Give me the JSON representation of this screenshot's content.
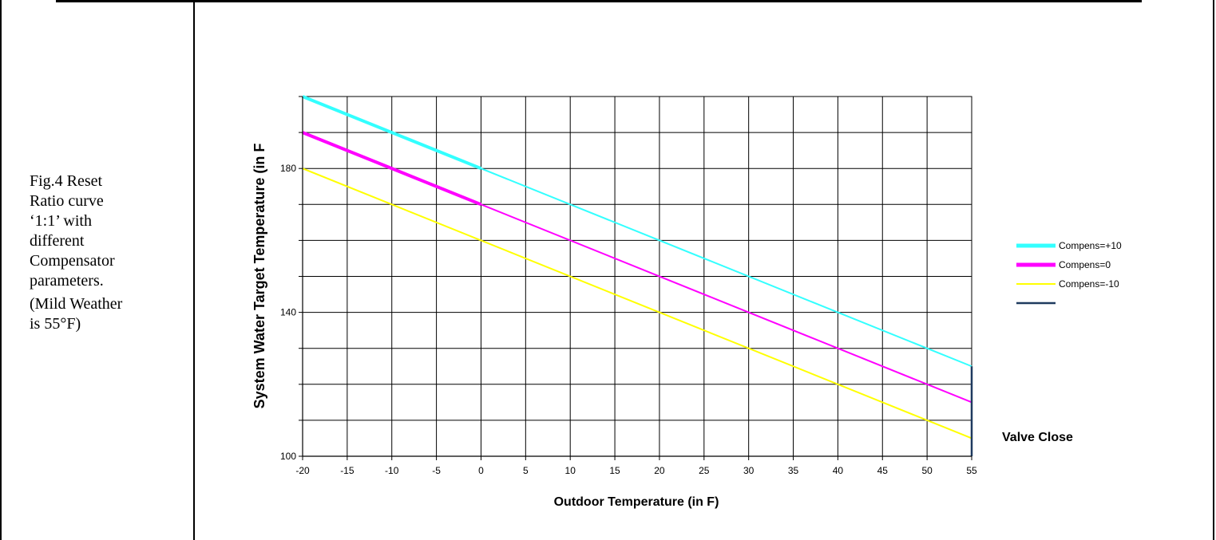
{
  "caption": {
    "lines": [
      "Fig.4 Reset",
      "Ratio curve",
      "‘1:1’ with",
      "different",
      "Compensator",
      "parameters."
    ],
    "sub_lines": [
      "(Mild Weather",
      "is 55°F)"
    ]
  },
  "chart_data": {
    "type": "line",
    "title": "",
    "xlabel": "Outdoor Temperature (in F)",
    "ylabel": "System Water Target Temperature (in F",
    "xlim": [
      -20,
      55
    ],
    "ylim": [
      100,
      200
    ],
    "x_ticks": [
      "-20",
      "-15",
      "-10",
      "-5",
      "0",
      "5",
      "10",
      "15",
      "20",
      "25",
      "30",
      "35",
      "40",
      "45",
      "50",
      "55"
    ],
    "y_tick_labels": [
      "100",
      "140",
      "180"
    ],
    "grid": true,
    "legend_position": "right",
    "series": [
      {
        "name": "Compens=+10",
        "color": "#33ffff",
        "x": [
          -20,
          55
        ],
        "y": [
          200,
          125
        ]
      },
      {
        "name": "Compens=0",
        "color": "#ff00ff",
        "x": [
          -20,
          55
        ],
        "y": [
          190,
          115
        ]
      },
      {
        "name": "Compens=-10",
        "color": "#ffff00",
        "x": [
          -20,
          55
        ],
        "y": [
          180,
          105
        ]
      },
      {
        "name": "",
        "color": "#1f3a5f",
        "x": [
          55,
          55
        ],
        "y": [
          100,
          125
        ]
      }
    ],
    "annotations": [
      {
        "text": "Valve Close"
      }
    ]
  }
}
